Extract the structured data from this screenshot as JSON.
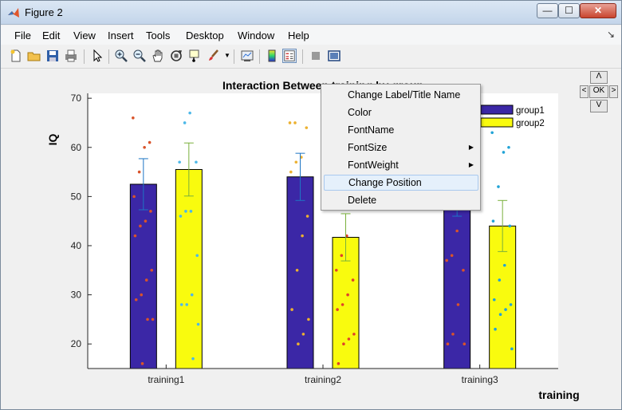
{
  "window": {
    "title": "Figure 2",
    "minimize": "—",
    "maximize": "☐",
    "close": "✕"
  },
  "menubar": {
    "items": [
      "File",
      "Edit",
      "View",
      "Insert",
      "Tools",
      "Desktop",
      "Window",
      "Help"
    ],
    "overflow": "↘"
  },
  "toolbar": {
    "icons": [
      "new-figure-icon",
      "open-file-icon",
      "save-icon",
      "print-icon",
      "pointer-icon",
      "zoom-in-icon",
      "zoom-out-icon",
      "pan-icon",
      "rotate-3d-icon",
      "data-cursor-icon",
      "brush-icon",
      "link-plot-icon",
      "colorbar-icon",
      "legend-icon",
      "hide-plot-tools-icon",
      "show-plot-tools-icon"
    ]
  },
  "nav_pad": {
    "up": "Λ",
    "left": "<",
    "ok": "OK",
    "right": ">",
    "down": "V"
  },
  "context_menu": {
    "items": [
      {
        "label": "Change Label/Title Name",
        "submenu": false
      },
      {
        "label": "Color",
        "submenu": false
      },
      {
        "label": "FontName",
        "submenu": false
      },
      {
        "label": "FontSize",
        "submenu": true
      },
      {
        "label": "FontWeight",
        "submenu": true
      },
      {
        "label": "Change Position",
        "submenu": false,
        "highlighted": true
      },
      {
        "label": "Delete",
        "submenu": false
      }
    ],
    "submenu_arrow": "▶"
  },
  "chart_data": {
    "type": "bar",
    "title": "Interaction Between training by group",
    "xlabel": "training",
    "ylabel": "IQ",
    "categories": [
      "training1",
      "training2",
      "training3"
    ],
    "ylim": [
      15,
      71
    ],
    "yticks": [
      20,
      30,
      40,
      50,
      60,
      70
    ],
    "grid": false,
    "legend": "top-right",
    "series": [
      {
        "name": "group1",
        "color": "#3b27a6",
        "values": [
          52.5,
          54,
          49.5
        ],
        "err": [
          5.2,
          4.8,
          3.5
        ]
      },
      {
        "name": "group2",
        "color": "#f9fb0e",
        "values": [
          55.5,
          41.7,
          44
        ],
        "err": [
          5.4,
          4.8,
          5.2
        ]
      }
    ],
    "points": [
      [
        {
          "color": "#d9532a",
          "y": [
            66,
            61,
            60,
            55,
            50,
            47,
            45,
            44,
            42,
            35,
            33,
            30,
            29,
            25,
            25,
            16
          ]
        },
        {
          "color": "#4db8e8",
          "y": [
            67,
            65,
            57,
            57,
            47,
            47,
            46,
            38,
            30,
            28,
            28,
            24,
            17
          ]
        }
      ],
      [
        {
          "color": "#ecb130",
          "y": [
            65,
            65,
            64,
            58,
            57,
            55,
            46,
            42,
            35,
            27,
            25,
            22,
            20
          ]
        },
        {
          "color": "#e0412a",
          "y": [
            48,
            42,
            38,
            35,
            33,
            30,
            28,
            27,
            22,
            21,
            20,
            16
          ]
        }
      ],
      [
        {
          "color": "#d9532a",
          "y": [
            43,
            38,
            37,
            35,
            28,
            22,
            20,
            20
          ]
        },
        {
          "color": "#21a3d6",
          "y": [
            63,
            60,
            59,
            52,
            45,
            44,
            36,
            33,
            29,
            28,
            27,
            26,
            23,
            19
          ]
        }
      ]
    ]
  }
}
